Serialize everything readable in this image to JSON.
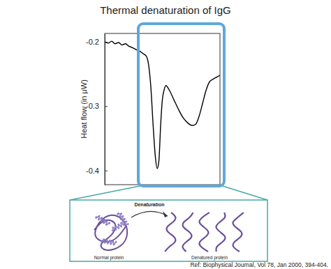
{
  "chart_data": {
    "type": "line",
    "title": "Thermal denaturation of IgG",
    "y_label": "Heat flow (in μW)",
    "x": [
      0,
      3,
      6,
      9,
      12,
      15,
      18,
      21,
      24,
      27,
      30,
      33,
      36,
      38,
      40,
      42,
      44,
      45.5,
      47,
      48.5,
      50,
      51.5,
      53,
      56,
      60,
      64,
      68,
      72,
      76,
      79,
      82,
      85,
      88,
      91,
      94,
      97,
      100
    ],
    "values": [
      -0.2,
      -0.202,
      -0.199,
      -0.203,
      -0.201,
      -0.205,
      -0.203,
      -0.207,
      -0.209,
      -0.212,
      -0.214,
      -0.218,
      -0.222,
      -0.235,
      -0.27,
      -0.33,
      -0.38,
      -0.397,
      -0.385,
      -0.33,
      -0.29,
      -0.275,
      -0.268,
      -0.275,
      -0.29,
      -0.305,
      -0.318,
      -0.326,
      -0.33,
      -0.328,
      -0.315,
      -0.295,
      -0.275,
      -0.262,
      -0.258,
      -0.255,
      -0.252
    ],
    "color": "#000000",
    "xlim": [
      0,
      100
    ],
    "ylim": [
      -0.422,
      -0.187
    ],
    "yticks": [
      -0.4,
      -0.3,
      -0.2
    ],
    "tick_labels": "y",
    "annotations": [
      "Denaturation",
      "Normal protein",
      "Denatured protein",
      "Ref: Biophysical Journal, Vol 78, Jan 2000, 394-404."
    ]
  }
}
